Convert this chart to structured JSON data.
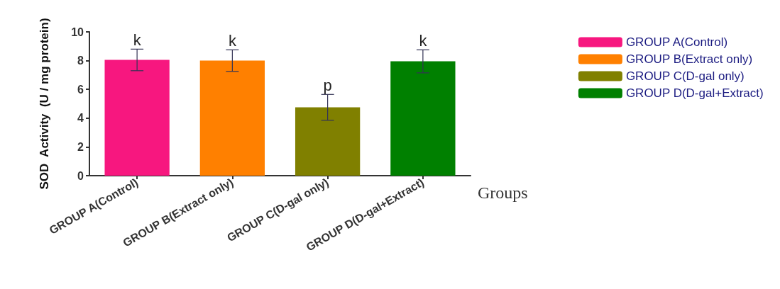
{
  "chart_data": {
    "type": "bar",
    "ylabel": "SOD  Activity  (U / mg protein)",
    "xlabel": "Groups",
    "categories": [
      "GROUP A(Control)",
      "GROUP B(Extract only)",
      "GROUP C(D-gal only)",
      "GROUP D(D-gal+Extract)"
    ],
    "series": [
      {
        "name": "GROUP A(Control)",
        "color": "#f7177f",
        "values": [
          8.05,
          null,
          null,
          null
        ],
        "errors": [
          0.75,
          null,
          null,
          null
        ]
      },
      {
        "name": "GROUP B(Extract only)",
        "color": "#ff8000",
        "values": [
          null,
          8.0,
          null,
          null
        ],
        "errors": [
          null,
          0.75,
          null,
          null
        ]
      },
      {
        "name": "GROUP C(D-gal only)",
        "color": "#808000",
        "values": [
          null,
          null,
          4.75,
          null
        ],
        "errors": [
          null,
          null,
          0.9,
          null
        ]
      },
      {
        "name": "GROUP D(D-gal+Extract)",
        "color": "#008000",
        "values": [
          null,
          null,
          null,
          7.95
        ],
        "errors": [
          null,
          null,
          null,
          0.8
        ]
      }
    ],
    "ylim": [
      0,
      10
    ],
    "yticks": [
      0,
      2,
      4,
      6,
      8,
      10
    ],
    "grid": false,
    "legend": "top right",
    "annotations": [
      {
        "text": "k",
        "x": "GROUP A(Control)",
        "y": 8.8
      },
      {
        "text": "k",
        "x": "GROUP B(Extract only)",
        "y": 8.75
      },
      {
        "text": "p",
        "x": "GROUP C(D-gal only)",
        "y": 5.65
      },
      {
        "text": "k",
        "x": "GROUP D(D-gal+Extract)",
        "y": 8.75
      }
    ]
  }
}
